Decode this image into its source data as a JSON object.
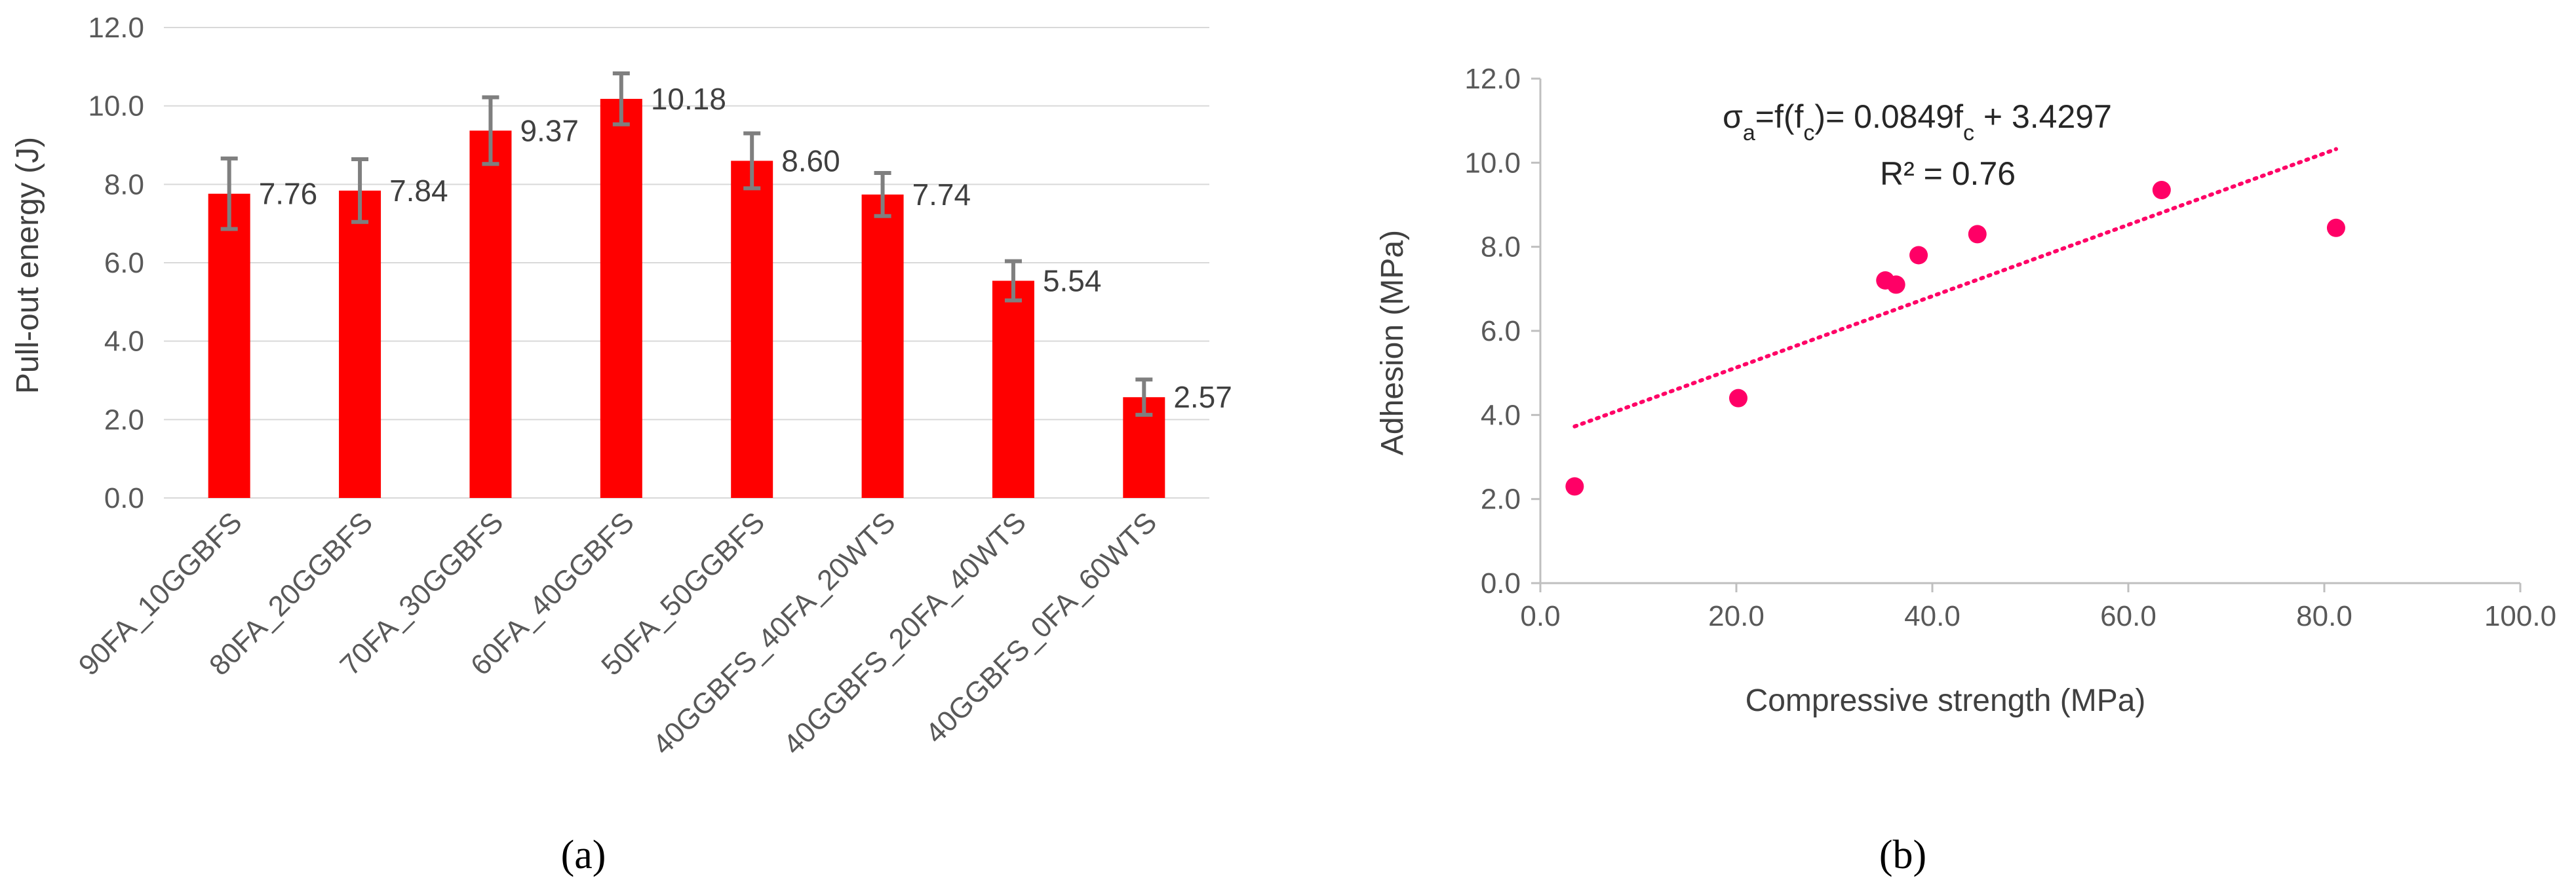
{
  "chart_data": [
    {
      "type": "bar",
      "panel_label": "(a)",
      "ylabel": "Pull-out energy (J)",
      "xlabel": "",
      "ylim": [
        0,
        12
      ],
      "yticks": [
        "0.0",
        "2.0",
        "4.0",
        "6.0",
        "8.0",
        "10.0",
        "12.0"
      ],
      "categories": [
        "90FA_10GGBFS",
        "80FA_20GGBFS",
        "70FA_30GGBFS",
        "60FA_40GGBFS",
        "50FA_50GGBFS",
        "40GGBFS_40FA_20WTS",
        "40GGBFS_20FA_40WTS",
        "40GGBFS_0FA_60WTS"
      ],
      "values": [
        7.76,
        7.84,
        9.37,
        10.18,
        8.6,
        7.74,
        5.54,
        2.57
      ],
      "data_labels": [
        "7.76",
        "7.84",
        "9.37",
        "10.18",
        "8.60",
        "7.74",
        "5.54",
        "2.57"
      ],
      "errors": [
        0.9,
        0.8,
        0.85,
        0.65,
        0.7,
        0.55,
        0.5,
        0.45
      ],
      "grid": true,
      "bar_color": "#ff0000",
      "error_color": "#7f7f7f"
    },
    {
      "type": "scatter",
      "panel_label": "(b)",
      "xlabel": "Compressive strength (MPa)",
      "ylabel": "Adhesion (MPa)",
      "xlim": [
        0,
        100
      ],
      "ylim": [
        0,
        12
      ],
      "xticks": [
        "0.0",
        "20.0",
        "40.0",
        "60.0",
        "80.0",
        "100.0"
      ],
      "yticks": [
        "0.0",
        "2.0",
        "4.0",
        "6.0",
        "8.0",
        "10.0",
        "12.0"
      ],
      "points": [
        {
          "x": 3.5,
          "y": 2.3
        },
        {
          "x": 20.2,
          "y": 4.4
        },
        {
          "x": 35.2,
          "y": 7.2
        },
        {
          "x": 36.3,
          "y": 7.1
        },
        {
          "x": 38.6,
          "y": 7.8
        },
        {
          "x": 44.6,
          "y": 8.3
        },
        {
          "x": 63.4,
          "y": 9.35
        },
        {
          "x": 81.2,
          "y": 8.45
        }
      ],
      "trendline": {
        "slope": 0.0849,
        "intercept": 3.4297,
        "x_start": 3.5,
        "x_end": 81.2
      },
      "equation": {
        "prefix": "σ",
        "sub1": "a",
        "mid": "=f(f",
        "sub2": "c",
        "rest": ")= 0.0849f",
        "sub3": "c",
        "tail": " + 3.4297"
      },
      "r_squared": "R² = 0.76",
      "grid": false,
      "marker_color": "#ff0066"
    }
  ]
}
